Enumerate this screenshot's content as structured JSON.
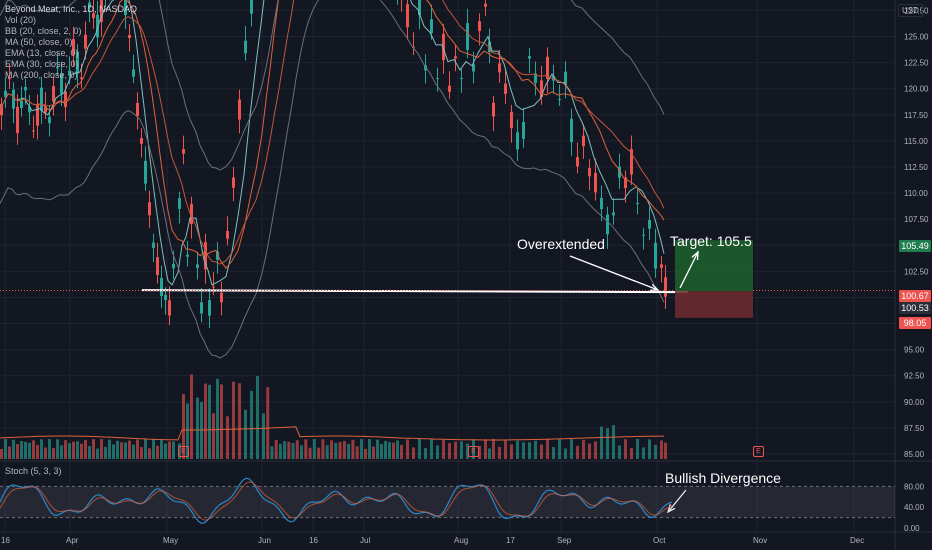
{
  "legend": {
    "title": "Beyond Meat, Inc., 1D, NASDAQ",
    "lines": [
      "Vol (20)",
      "BB (20, close, 2, 0)",
      "MA (50, close, 0)",
      "EMA (13, close, 0)",
      "EMA (30, close, 0)",
      "MA (200, close, 0)"
    ]
  },
  "currency": "USD",
  "stoch_label": "Stoch (5, 3, 3)",
  "annotations": {
    "overextended": "Overextended",
    "target": "Target: 105.5",
    "bullish": "Bullish Divergence"
  },
  "price_tags": {
    "target": "105.49",
    "last": "100.67",
    "prev": "100.53",
    "stop": "98.05"
  },
  "events": [
    "E",
    "E",
    "E"
  ],
  "colors": {
    "background": "#131722",
    "up": "#26a69a",
    "down": "#ef5350",
    "ema13": "#7fbfbf",
    "ema30": "#e0623b",
    "ma50": "#c2563d",
    "bb": "#6b6f78",
    "stoch": "#2a86c8",
    "target_zone": "#1e5e2e",
    "stop_zone": "#6b2a30"
  },
  "chart_data": {
    "type": "candlestick",
    "price_axis": {
      "range": [
        85,
        128.5
      ],
      "ticks": [
        "127.50",
        "125.00",
        "122.50",
        "120.00",
        "117.50",
        "115.00",
        "112.50",
        "110.00",
        "107.50",
        "105.00",
        "102.50",
        "100.00",
        "97.50",
        "95.00",
        "92.50",
        "90.00",
        "87.50",
        "85.00"
      ]
    },
    "time_axis": {
      "labels": [
        "16",
        "Apr",
        "May",
        "Jun",
        "16",
        "Jul",
        "Aug",
        "17",
        "Sep",
        "Oct",
        "Nov",
        "Dec"
      ]
    },
    "stoch_axis": {
      "range": [
        0,
        100
      ],
      "ticks": [
        "80.00",
        "40.00",
        "0.00"
      ],
      "bands": [
        20,
        80
      ]
    },
    "support_level": 100.6,
    "position": {
      "entry": 100.6,
      "target": 105.49,
      "stop": 98.05
    },
    "closes": [
      [
        0,
        139
      ],
      [
        3,
        137
      ],
      [
        6,
        138
      ],
      [
        9,
        135
      ],
      [
        12,
        136
      ],
      [
        15,
        133
      ],
      [
        18,
        135
      ],
      [
        21,
        131
      ],
      [
        24,
        133
      ],
      [
        27,
        130
      ],
      [
        30,
        132
      ],
      [
        33,
        129
      ],
      [
        36,
        131
      ],
      [
        39,
        128
      ],
      [
        42,
        130
      ],
      [
        45,
        127
      ],
      [
        48,
        129
      ],
      [
        51,
        126
      ],
      [
        54,
        128
      ],
      [
        57,
        125
      ],
      [
        60,
        127
      ],
      [
        63,
        124
      ],
      [
        66,
        126
      ],
      [
        69,
        123
      ],
      [
        72,
        125
      ],
      [
        75,
        122
      ],
      [
        78,
        124
      ],
      [
        81,
        121
      ],
      [
        84,
        123
      ],
      [
        87,
        120
      ],
      [
        90,
        122
      ],
      [
        93,
        119
      ],
      [
        96,
        121
      ],
      [
        99,
        118
      ],
      [
        102,
        120
      ],
      [
        105,
        117
      ],
      [
        108,
        119
      ],
      [
        111,
        116
      ],
      [
        114,
        118
      ],
      [
        117,
        115
      ],
      [
        120,
        117
      ],
      [
        123,
        114
      ],
      [
        126,
        116
      ],
      [
        129,
        113
      ],
      [
        132,
        115
      ],
      [
        135,
        112
      ],
      [
        138,
        114
      ],
      [
        141,
        111
      ],
      [
        144,
        113
      ],
      [
        147,
        110
      ],
      [
        150,
        112
      ],
      [
        153,
        109
      ],
      [
        156,
        111
      ],
      [
        159,
        108
      ],
      [
        162,
        110
      ],
      [
        165,
        107
      ],
      [
        168,
        109
      ],
      [
        171,
        106
      ],
      [
        174,
        108
      ],
      [
        177,
        105
      ],
      [
        180,
        107
      ],
      [
        183,
        104
      ],
      [
        186,
        106
      ],
      [
        189,
        103
      ],
      [
        192,
        105
      ],
      [
        195,
        102
      ],
      [
        198,
        104
      ],
      [
        201,
        101
      ],
      [
        204,
        103
      ],
      [
        207,
        100
      ],
      [
        210,
        102
      ],
      [
        213,
        99
      ],
      [
        216,
        101
      ],
      [
        219,
        98
      ],
      [
        222,
        100
      ],
      [
        225,
        97
      ],
      [
        228,
        99
      ],
      [
        231,
        96
      ],
      [
        234,
        98
      ],
      [
        237,
        95
      ],
      [
        240,
        97
      ],
      [
        243,
        94
      ],
      [
        246,
        96
      ],
      [
        249,
        93
      ],
      [
        252,
        95
      ],
      [
        255,
        92
      ],
      [
        258,
        94
      ],
      [
        261,
        91
      ],
      [
        264,
        93
      ],
      [
        267,
        90
      ],
      [
        270,
        92
      ],
      [
        273,
        89
      ],
      [
        276,
        91
      ],
      [
        279,
        88
      ],
      [
        282,
        90
      ],
      [
        285,
        87
      ],
      [
        288,
        89
      ],
      [
        291,
        86
      ],
      [
        294,
        88
      ],
      [
        297,
        85
      ],
      [
        300,
        87
      ],
      [
        303,
        84
      ],
      [
        306,
        86
      ],
      [
        309,
        83
      ],
      [
        312,
        85
      ],
      [
        315,
        82
      ],
      [
        318,
        84
      ],
      [
        321,
        81
      ],
      [
        324,
        83
      ],
      [
        327,
        80
      ],
      [
        330,
        82
      ],
      [
        333,
        79
      ],
      [
        336,
        81
      ],
      [
        339,
        78
      ],
      [
        342,
        80
      ],
      [
        345,
        77
      ],
      [
        348,
        79
      ],
      [
        351,
        76
      ],
      [
        354,
        78
      ],
      [
        357,
        75
      ],
      [
        360,
        77
      ],
      [
        363,
        74
      ],
      [
        366,
        76
      ],
      [
        369,
        73
      ],
      [
        372,
        75
      ],
      [
        375,
        72
      ],
      [
        378,
        74
      ],
      [
        381,
        71
      ],
      [
        384,
        73
      ],
      [
        387,
        70
      ]
    ],
    "series": [
      {
        "name": "Price",
        "values": [
          115.0,
          113.5,
          114.2,
          112.8,
          113.6,
          111.9,
          112.7,
          111.1,
          112.0,
          110.6,
          111.4,
          109.8,
          110.7,
          109.2,
          110.1,
          108.5,
          109.4,
          107.9,
          108.8,
          107.2
        ]
      }
    ]
  }
}
